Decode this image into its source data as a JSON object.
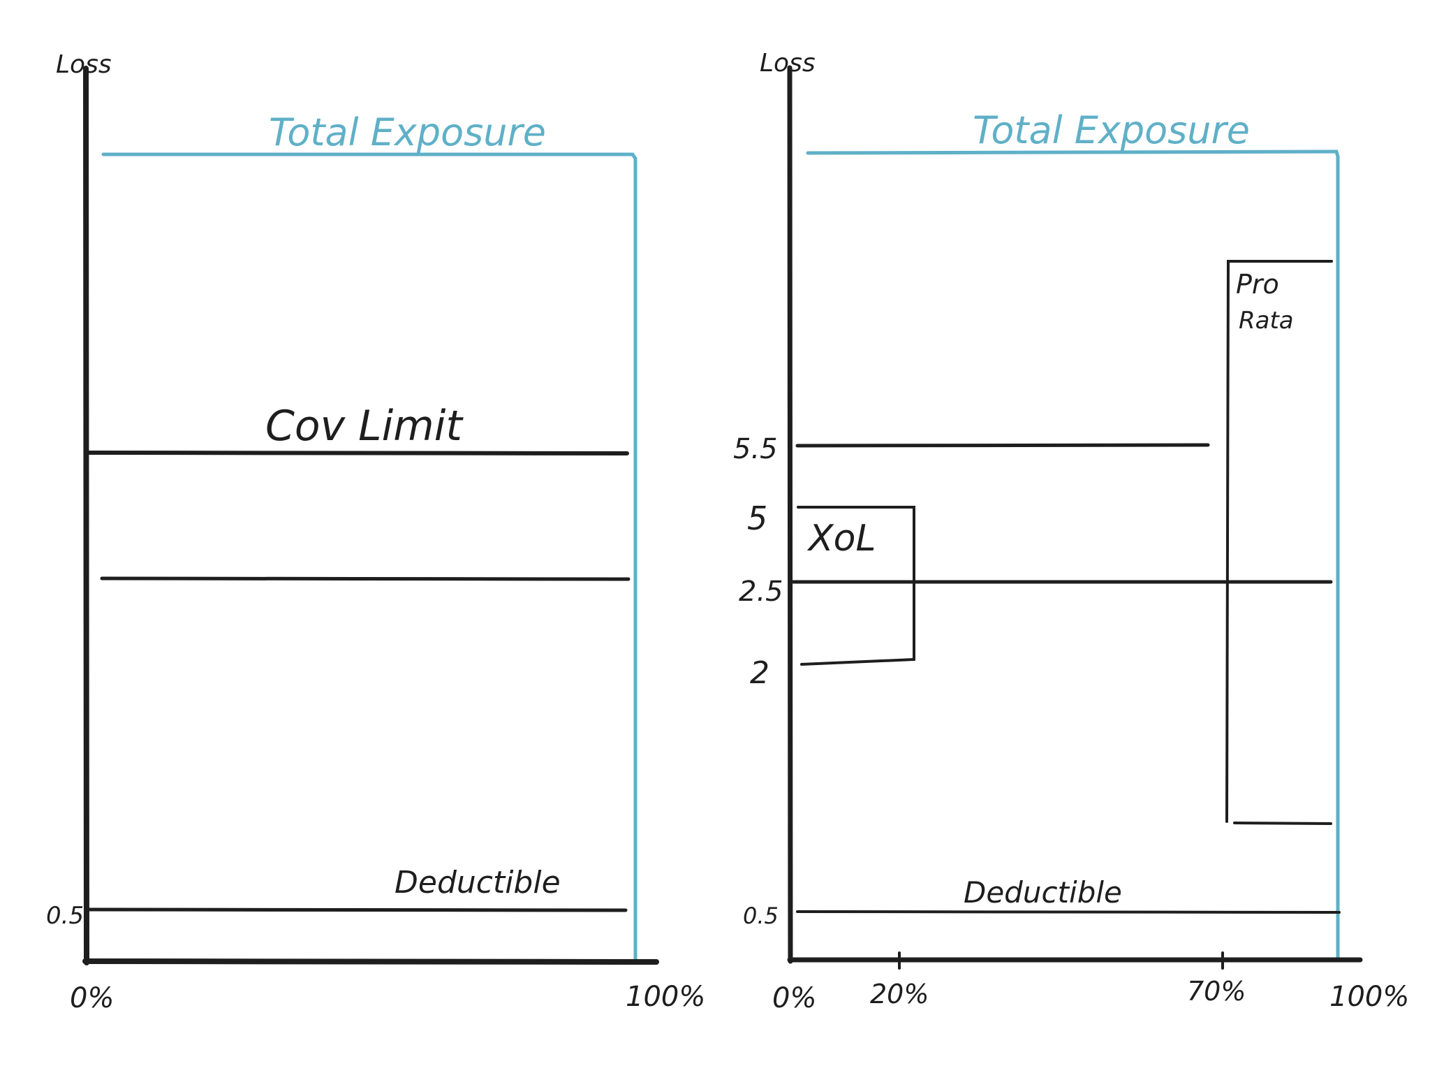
{
  "colors": {
    "ink": "#1e1e1e",
    "exposure": "#5fb0c7"
  },
  "left_panel": {
    "axis_label": "Loss",
    "exposure_label": "Total Exposure",
    "limit_label": "Cov Limit",
    "deductible_label": "Deductible",
    "y_tick": "0.5",
    "x_start": "0%",
    "x_end": "100%"
  },
  "right_panel": {
    "axis_label": "Loss",
    "exposure_label": "Total Exposure",
    "xol_label": "XoL",
    "pro_rata_label_1": "Pro",
    "pro_rata_label_2": "Rata",
    "deductible_label": "Deductible",
    "y_ticks": [
      "5.5",
      "5",
      "2.5",
      "2",
      "0.5"
    ],
    "x_ticks": [
      "0%",
      "20%",
      "70%",
      "100%"
    ]
  }
}
